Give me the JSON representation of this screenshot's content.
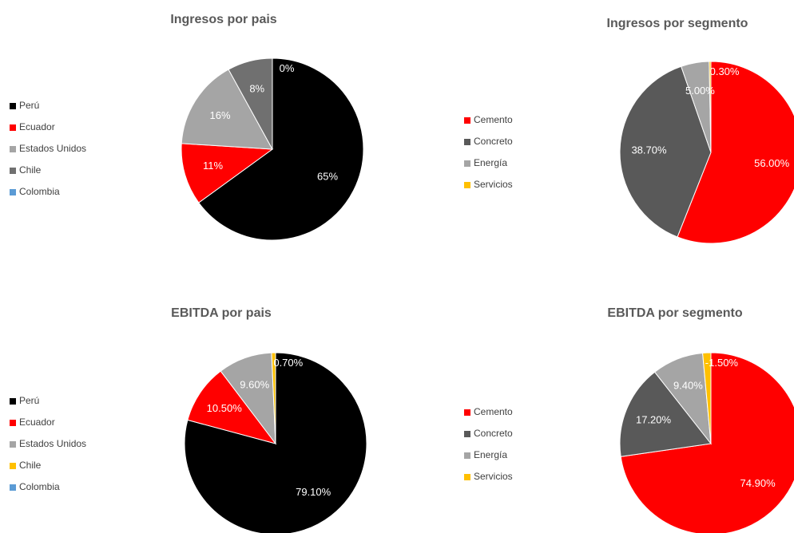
{
  "chart_data": [
    {
      "type": "pie",
      "title": "Ingresos por pais",
      "categories": [
        "Perú",
        "Ecuador",
        "Estados Unidos",
        "Chile",
        "Colombia"
      ],
      "values": [
        65,
        11,
        16,
        8,
        0
      ],
      "value_labels": [
        "65%",
        "11%",
        "16%",
        "8%",
        "0%"
      ],
      "colors": [
        "#000000",
        "#ff0000",
        "#a5a5a5",
        "#707070",
        "#5b9bd5"
      ]
    },
    {
      "type": "pie",
      "title": "Ingresos por segmento",
      "categories": [
        "Cemento",
        "Concreto",
        "Energía",
        "Servicios"
      ],
      "values": [
        56,
        38.7,
        5,
        0.3
      ],
      "value_labels": [
        "56.00%",
        "38.70%",
        "5.00%",
        "0.30%"
      ],
      "colors": [
        "#ff0000",
        "#595959",
        "#a5a5a5",
        "#ffc000"
      ]
    },
    {
      "type": "pie",
      "title": "EBITDA por pais",
      "categories": [
        "Perú",
        "Ecuador",
        "Estados Unidos",
        "Chile",
        "Colombia"
      ],
      "values": [
        79.1,
        10.5,
        9.6,
        0.7,
        null
      ],
      "value_labels": [
        "79.10%",
        "10.50%",
        "9.60%",
        "0.70%",
        null
      ],
      "colors": [
        "#000000",
        "#ff0000",
        "#a5a5a5",
        "#ffc000",
        "#5b9bd5"
      ]
    },
    {
      "type": "pie",
      "title": "EBITDA por segmento",
      "categories": [
        "Cemento",
        "Concreto",
        "Energía",
        "Servicios"
      ],
      "values": [
        74.9,
        17.2,
        9.4,
        -1.5
      ],
      "value_labels": [
        "74.90%",
        "17.20%",
        "9.40%",
        "-1.50%"
      ],
      "colors": [
        "#ff0000",
        "#595959",
        "#a5a5a5",
        "#ffc000"
      ]
    }
  ]
}
